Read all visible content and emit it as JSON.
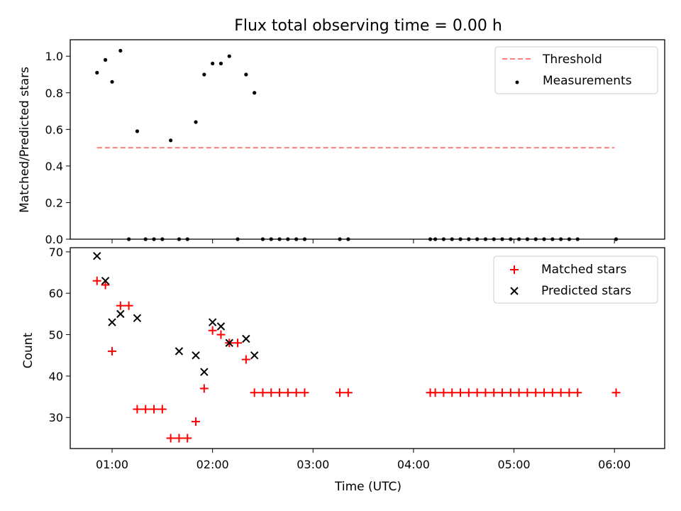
{
  "chart_data": [
    {
      "type": "scatter",
      "title": "Flux total observing time = 0.00 h",
      "xlabel": "",
      "ylabel": "Matched/Predicted stars",
      "ylim": [
        0,
        1.09
      ],
      "yticks": [
        "0.0",
        "0.2",
        "0.4",
        "0.6",
        "0.8",
        "1.0"
      ],
      "legend_position": "top-right",
      "series": [
        {
          "name": "Threshold",
          "kind": "dashed-line",
          "color": "#ff7f7f",
          "x": [
            "00:51",
            "06:00"
          ],
          "y": [
            0.5,
            0.5
          ]
        },
        {
          "name": "Measurements",
          "kind": "dots",
          "color": "#000000",
          "x": [
            "00:51",
            "00:56",
            "01:00",
            "01:05",
            "01:10",
            "01:15",
            "01:20",
            "01:25",
            "01:30",
            "01:35",
            "01:40",
            "01:45",
            "01:50",
            "01:55",
            "02:00",
            "02:05",
            "02:10",
            "02:15",
            "02:20",
            "02:25",
            "02:30",
            "02:35",
            "02:40",
            "02:45",
            "02:50",
            "02:55",
            "03:16",
            "03:21",
            "04:10",
            "04:13",
            "04:18",
            "04:23",
            "04:28",
            "04:33",
            "04:38",
            "04:43",
            "04:48",
            "04:53",
            "04:58",
            "05:03",
            "05:08",
            "05:13",
            "05:18",
            "05:23",
            "05:28",
            "05:33",
            "05:38",
            "06:01"
          ],
          "y": [
            0.91,
            0.98,
            0.86,
            1.03,
            0,
            0.59,
            0,
            0,
            0,
            0.54,
            0,
            0,
            0.64,
            0.9,
            0.96,
            0.96,
            1.0,
            0,
            0.9,
            0.8,
            0,
            0,
            0,
            0,
            0,
            0,
            0,
            0,
            0,
            0,
            0,
            0,
            0,
            0,
            0,
            0,
            0,
            0,
            0,
            0,
            0,
            0,
            0,
            0,
            0,
            0,
            0,
            0
          ]
        }
      ]
    },
    {
      "type": "scatter",
      "title": "",
      "xlabel": "Time (UTC)",
      "ylabel": "Count",
      "ylim": [
        22.5,
        71
      ],
      "yticks": [
        "30",
        "40",
        "50",
        "60",
        "70"
      ],
      "xticks": [
        "01:00",
        "02:00",
        "03:00",
        "04:00",
        "05:00",
        "06:00"
      ],
      "xlim": [
        "00:35",
        "06:30"
      ],
      "legend_position": "top-right",
      "series": [
        {
          "name": "Matched stars",
          "marker": "plus",
          "color": "#ff0000",
          "x": [
            "00:51",
            "00:56",
            "01:00",
            "01:05",
            "01:10",
            "01:15",
            "01:20",
            "01:25",
            "01:30",
            "01:35",
            "01:40",
            "01:45",
            "01:50",
            "01:55",
            "02:00",
            "02:05",
            "02:10",
            "02:15",
            "02:20",
            "02:25",
            "02:30",
            "02:35",
            "02:40",
            "02:45",
            "02:50",
            "02:55",
            "03:16",
            "03:21",
            "04:10",
            "04:13",
            "04:18",
            "04:23",
            "04:28",
            "04:33",
            "04:38",
            "04:43",
            "04:48",
            "04:53",
            "04:58",
            "05:03",
            "05:08",
            "05:13",
            "05:18",
            "05:23",
            "05:28",
            "05:33",
            "05:38",
            "06:01"
          ],
          "y": [
            63,
            62,
            46,
            57,
            57,
            32,
            32,
            32,
            32,
            25,
            25,
            25,
            29,
            37,
            51,
            50,
            48,
            48,
            44,
            36,
            36,
            36,
            36,
            36,
            36,
            36,
            36,
            36,
            36,
            36,
            36,
            36,
            36,
            36,
            36,
            36,
            36,
            36,
            36,
            36,
            36,
            36,
            36,
            36,
            36,
            36,
            36,
            36
          ]
        },
        {
          "name": "Predicted stars",
          "marker": "x",
          "color": "#000000",
          "x": [
            "00:51",
            "00:56",
            "01:00",
            "01:05",
            "01:15",
            "01:40",
            "01:50",
            "01:55",
            "02:00",
            "02:05",
            "02:10",
            "02:20",
            "02:25"
          ],
          "y": [
            69,
            63,
            53,
            55,
            54,
            46,
            45,
            41,
            53,
            52,
            48,
            49,
            45
          ]
        }
      ]
    }
  ]
}
